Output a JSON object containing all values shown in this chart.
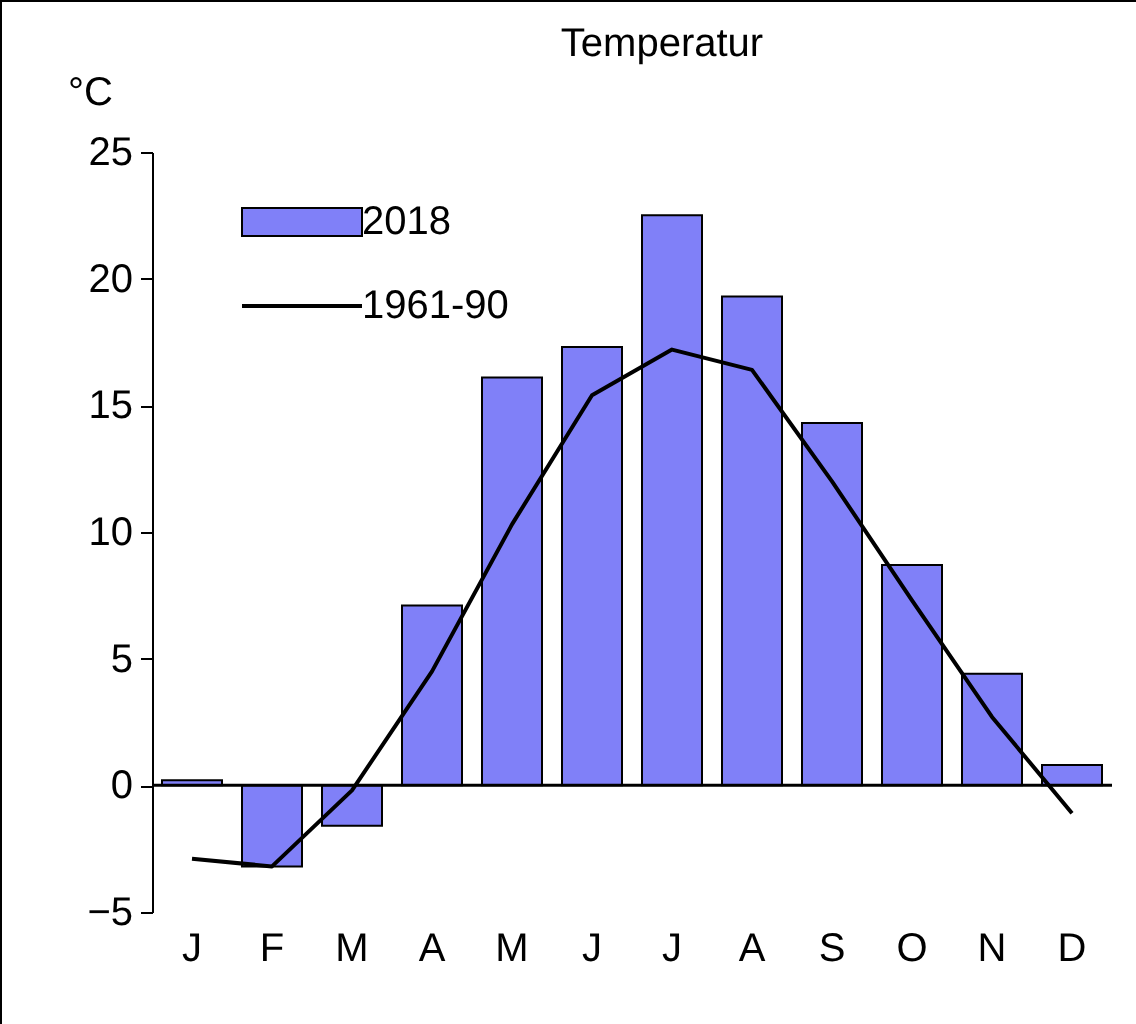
{
  "chart_data": {
    "type": "bar",
    "title": "Temperatur",
    "ylabel": "°C",
    "categories": [
      "J",
      "F",
      "M",
      "A",
      "M",
      "J",
      "J",
      "A",
      "S",
      "O",
      "N",
      "D"
    ],
    "series": [
      {
        "name": "2018",
        "color": "#8080f8",
        "values": [
          0.2,
          -3.2,
          -1.6,
          7.1,
          16.1,
          17.3,
          22.5,
          19.3,
          14.3,
          8.7,
          4.4,
          0.8
        ]
      },
      {
        "name": "1961-90",
        "type": "line",
        "color": "#000000",
        "values": [
          -2.9,
          -3.2,
          -0.2,
          4.5,
          10.3,
          15.4,
          17.2,
          16.4,
          12.0,
          7.3,
          2.7,
          -1.1
        ]
      }
    ],
    "ylim": [
      -5,
      25
    ],
    "yticks": [
      -5,
      0,
      5,
      10,
      15,
      20,
      25
    ],
    "ref_lines": [
      {
        "axis": "y",
        "value": 0,
        "color": "#000000"
      }
    ],
    "legend": "top left",
    "grid": false
  }
}
